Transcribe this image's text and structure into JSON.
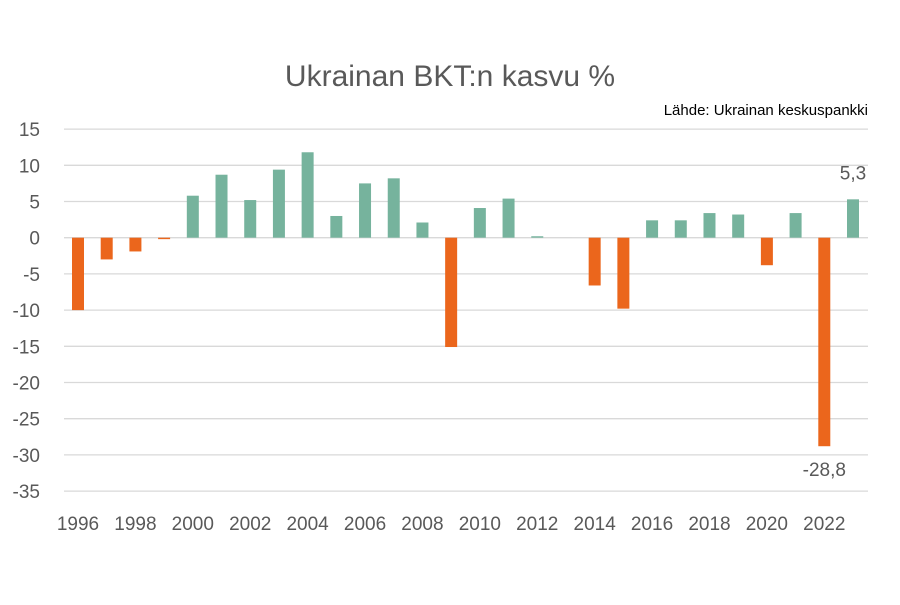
{
  "chart_data": {
    "type": "bar",
    "title": "Ukrainan BKT:n kasvu %",
    "source": "Lähde: Ukrainan keskuspankki",
    "xlabel": "",
    "ylabel": "",
    "ylim": [
      -35,
      15
    ],
    "yticks": [
      15,
      10,
      5,
      0,
      -5,
      -10,
      -15,
      -20,
      -25,
      -30,
      -35
    ],
    "categories": [
      1996,
      1997,
      1998,
      1999,
      2000,
      2001,
      2002,
      2003,
      2004,
      2005,
      2006,
      2007,
      2008,
      2009,
      2010,
      2011,
      2012,
      2013,
      2014,
      2015,
      2016,
      2017,
      2018,
      2019,
      2020,
      2021,
      2022,
      2023
    ],
    "xtick_labels": [
      "1996",
      "1998",
      "2000",
      "2002",
      "2004",
      "2006",
      "2008",
      "2010",
      "2012",
      "2014",
      "2016",
      "2018",
      "2020",
      "2022"
    ],
    "values": [
      -10.0,
      -3.0,
      -1.9,
      -0.2,
      5.8,
      8.7,
      5.2,
      9.4,
      11.8,
      3.0,
      7.5,
      8.2,
      2.1,
      -15.1,
      4.1,
      5.4,
      0.2,
      0.0,
      -6.6,
      -9.8,
      2.4,
      2.4,
      3.4,
      3.2,
      -3.8,
      3.4,
      -28.8,
      5.3
    ],
    "data_labels": [
      {
        "year": 2022,
        "text": "-28,8"
      },
      {
        "year": 2023,
        "text": "5,3"
      }
    ],
    "colors": {
      "positive": "#76b39d",
      "negative": "#eb661c",
      "grid": "#d9d9d9"
    },
    "grid": true,
    "legend": "none"
  }
}
